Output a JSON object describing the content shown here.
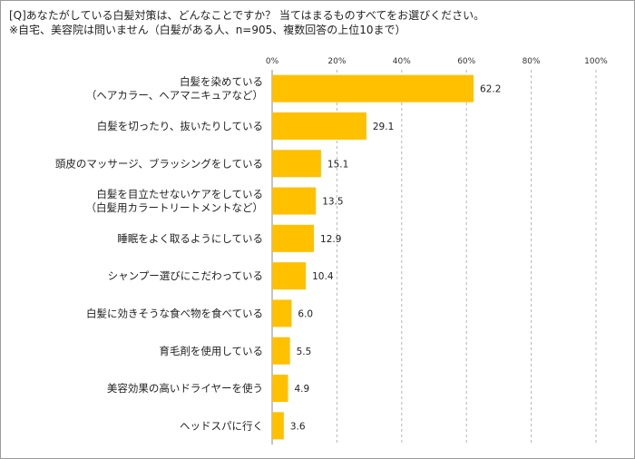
{
  "title_lines": [
    "[Q]あなたがしている白髪対策は、どんなことですか？ 当てはまるものすべてをお選びください。",
    "※自宅、美容院は問いません（白髪がある人、n=905、複数回答の上位10まで）"
  ],
  "chart_data": {
    "type": "bar",
    "orientation": "horizontal",
    "categories": [
      [
        "白髪を染めている",
        "（ヘアカラー、ヘアマニキュアなど）"
      ],
      [
        "白髪を切ったり、抜いたりしている"
      ],
      [
        "頭皮のマッサージ、ブラッシングをしている"
      ],
      [
        "白髪を目立たせないケアをしている",
        "（白髪用カラートリートメントなど）"
      ],
      [
        "睡眠をよく取るようにしている"
      ],
      [
        "シャンプー選びにこだわっている"
      ],
      [
        "白髪に効きそうな食べ物を食べている"
      ],
      [
        "育毛剤を使用している"
      ],
      [
        "美容効果の高いドライヤーを使う"
      ],
      [
        "ヘッドスパに行く"
      ]
    ],
    "values": [
      62.2,
      29.1,
      15.1,
      13.5,
      12.9,
      10.4,
      6.0,
      5.5,
      4.9,
      3.6
    ],
    "value_labels": [
      "62.2",
      "29.1",
      "15.1",
      "13.5",
      "12.9",
      "10.4",
      "6.0",
      "5.5",
      "4.9",
      "3.6"
    ],
    "xlim": [
      0,
      100
    ],
    "xticks": [
      0,
      20,
      40,
      60,
      80,
      100
    ],
    "xtick_labels": [
      "0%",
      "20%",
      "40%",
      "60%",
      "80%",
      "100%"
    ],
    "bar_color": "#FFC000",
    "gridlines": true,
    "grid_style": "dashed"
  }
}
